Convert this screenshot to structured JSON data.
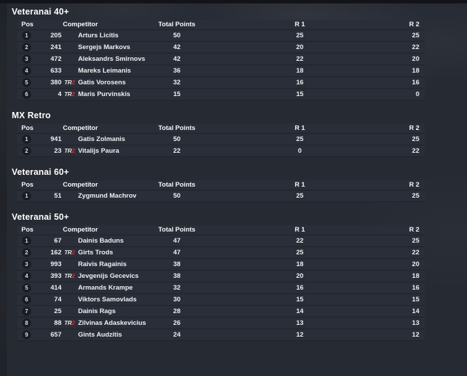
{
  "columns": {
    "pos": "Pos",
    "competitor": "Competitor",
    "total": "Total Points",
    "r1": "R 1",
    "r2": "R 2"
  },
  "badge": {
    "tr": "TR",
    "two": "2"
  },
  "colors": {
    "accent_red": "#d22f2f",
    "row_bg": "#2a2e38",
    "page_bg": "#262a33",
    "outer_bg": "#1e2127",
    "top_bar": "#121419",
    "text": "#eef0f3"
  },
  "sections": [
    {
      "title": "Veteranai 40+",
      "rows": [
        {
          "pos": "1",
          "num": "205",
          "badge": false,
          "name": "Arturs Licitis",
          "total": "50",
          "r1": "25",
          "r2": "25"
        },
        {
          "pos": "2",
          "num": "241",
          "badge": false,
          "name": "Sergejs Markovs",
          "total": "42",
          "r1": "20",
          "r2": "22"
        },
        {
          "pos": "3",
          "num": "472",
          "badge": false,
          "name": "Aleksandrs Smirnovs",
          "total": "42",
          "r1": "22",
          "r2": "20"
        },
        {
          "pos": "4",
          "num": "633",
          "badge": false,
          "name": "Mareks Leimanis",
          "total": "36",
          "r1": "18",
          "r2": "18"
        },
        {
          "pos": "5",
          "num": "380",
          "badge": true,
          "name": "Gatis Vorosens",
          "total": "32",
          "r1": "16",
          "r2": "16"
        },
        {
          "pos": "6",
          "num": "4",
          "badge": true,
          "name": "Maris Purvinskis",
          "total": "15",
          "r1": "15",
          "r2": "0"
        }
      ]
    },
    {
      "title": "MX Retro",
      "rows": [
        {
          "pos": "1",
          "num": "941",
          "badge": false,
          "name": "Gatis Zolmanis",
          "total": "50",
          "r1": "25",
          "r2": "25"
        },
        {
          "pos": "2",
          "num": "23",
          "badge": true,
          "name": "Vitalijs Paura",
          "total": "22",
          "r1": "0",
          "r2": "22"
        }
      ]
    },
    {
      "title": "Veteranai 60+",
      "rows": [
        {
          "pos": "1",
          "num": "51",
          "badge": false,
          "name": "Zygmund Machrov",
          "total": "50",
          "r1": "25",
          "r2": "25"
        }
      ]
    },
    {
      "title": "Veteranai 50+",
      "rows": [
        {
          "pos": "1",
          "num": "67",
          "badge": false,
          "name": "Dainis Baduns",
          "total": "47",
          "r1": "22",
          "r2": "25"
        },
        {
          "pos": "2",
          "num": "162",
          "badge": true,
          "name": "Girts Trods",
          "total": "47",
          "r1": "25",
          "r2": "22"
        },
        {
          "pos": "3",
          "num": "993",
          "badge": false,
          "name": "Raivis Ragainis",
          "total": "38",
          "r1": "18",
          "r2": "20"
        },
        {
          "pos": "4",
          "num": "393",
          "badge": true,
          "name": "Jevgenijs Gecevics",
          "total": "38",
          "r1": "20",
          "r2": "18"
        },
        {
          "pos": "5",
          "num": "414",
          "badge": false,
          "name": "Armands Krampe",
          "total": "32",
          "r1": "16",
          "r2": "16"
        },
        {
          "pos": "6",
          "num": "74",
          "badge": false,
          "name": "Viktors Samovlads",
          "total": "30",
          "r1": "15",
          "r2": "15"
        },
        {
          "pos": "7",
          "num": "25",
          "badge": false,
          "name": "Dainis Rags",
          "total": "28",
          "r1": "14",
          "r2": "14"
        },
        {
          "pos": "8",
          "num": "88",
          "badge": true,
          "name": "Zilvinas Adaskevicius",
          "total": "26",
          "r1": "13",
          "r2": "13"
        },
        {
          "pos": "9",
          "num": "657",
          "badge": false,
          "name": "Gints Audzitis",
          "total": "24",
          "r1": "12",
          "r2": "12"
        }
      ]
    }
  ]
}
